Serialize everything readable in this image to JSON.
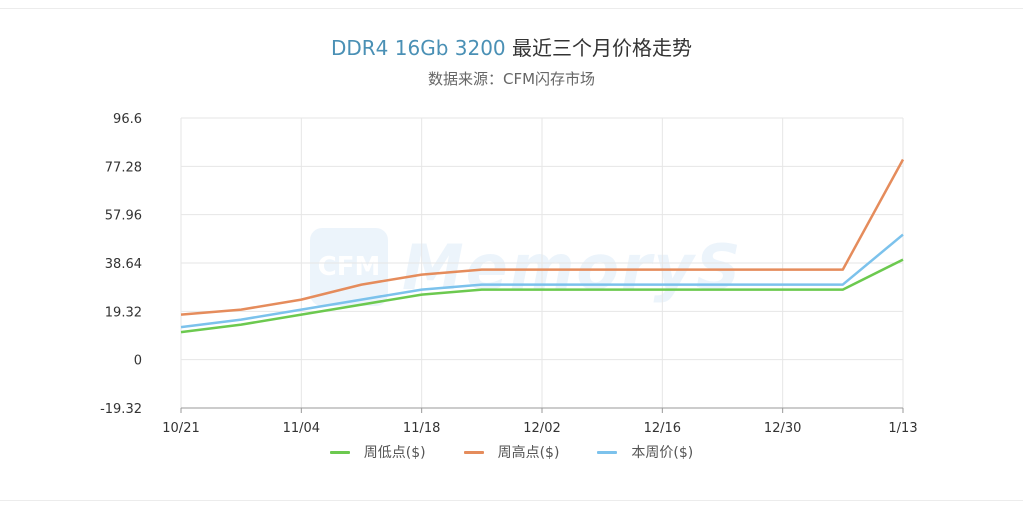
{
  "header": {
    "title_prefix": "DDR4 16Gb 3200",
    "title_suffix": " 最近三个月价格走势",
    "subtitle": "数据来源：CFM闪存市场"
  },
  "watermark": {
    "logo": "CFM",
    "text": "MemoryS"
  },
  "chart_data": {
    "type": "line",
    "title": "DDR4 16Gb 3200 最近三个月价格走势",
    "subtitle": "数据来源：CFM闪存市场",
    "x_ticks": [
      "10/21",
      "11/04",
      "11/18",
      "12/02",
      "12/16",
      "12/30",
      "1/13"
    ],
    "x": [
      "10/21",
      "10/28",
      "11/04",
      "11/11",
      "11/18",
      "11/25",
      "12/02",
      "12/09",
      "12/16",
      "12/23",
      "12/30",
      "1/06",
      "1/13"
    ],
    "y_ticks": [
      "96.6",
      "77.28",
      "57.96",
      "38.64",
      "19.32",
      "0",
      "-19.32"
    ],
    "ylim": [
      -19.32,
      96.6
    ],
    "grid": true,
    "legend_position": "bottom",
    "series": [
      {
        "name": "周低点($)",
        "color": "#6cc94f",
        "values": [
          11,
          14,
          18,
          22,
          26,
          28,
          28,
          28,
          28,
          28,
          28,
          28,
          40
        ]
      },
      {
        "name": "周高点($)",
        "color": "#e58c5c",
        "values": [
          18,
          20,
          24,
          30,
          34,
          36,
          36,
          36,
          36,
          36,
          36,
          36,
          80
        ]
      },
      {
        "name": "本周价($)",
        "color": "#7cc2ec",
        "values": [
          13,
          16,
          20,
          24,
          28,
          30,
          30,
          30,
          30,
          30,
          30,
          30,
          50
        ]
      }
    ]
  }
}
